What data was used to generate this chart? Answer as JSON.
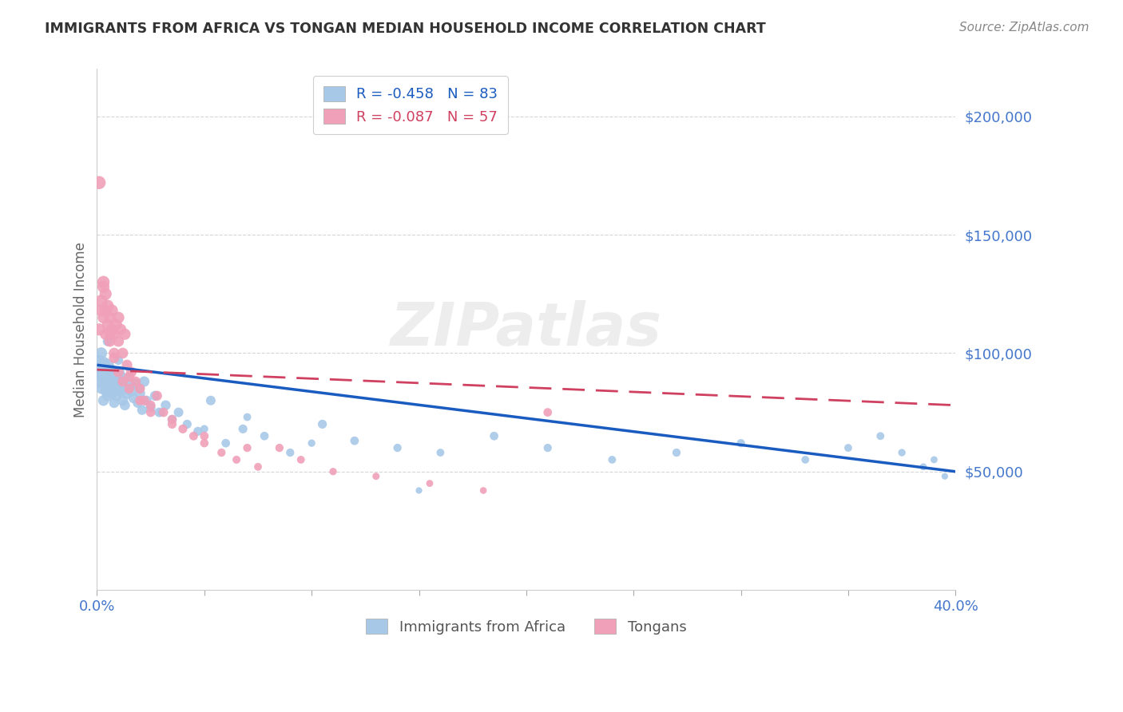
{
  "title": "IMMIGRANTS FROM AFRICA VS TONGAN MEDIAN HOUSEHOLD INCOME CORRELATION CHART",
  "source": "Source: ZipAtlas.com",
  "ylabel": "Median Household Income",
  "xlim": [
    0.0,
    0.4
  ],
  "ylim": [
    0,
    220000
  ],
  "watermark": "ZIPatlas",
  "legend_r1": "R = -0.458",
  "legend_n1": "N = 83",
  "legend_r2": "R = -0.087",
  "legend_n2": "N = 57",
  "africa_color": "#a8c8e8",
  "tongan_color": "#f0a0b8",
  "africa_line_color": "#1a5bbf",
  "tongan_line_color": "#d04060",
  "africa_label": "Immigrants from Africa",
  "tongan_label": "Tongans",
  "axis_color": "#4477cc",
  "grid_color": "#cccccc",
  "background_color": "#ffffff",
  "africa_x": [
    0.001,
    0.001,
    0.001,
    0.002,
    0.002,
    0.002,
    0.002,
    0.003,
    0.003,
    0.003,
    0.003,
    0.004,
    0.004,
    0.004,
    0.005,
    0.005,
    0.005,
    0.006,
    0.006,
    0.006,
    0.007,
    0.007,
    0.008,
    0.008,
    0.008,
    0.009,
    0.009,
    0.01,
    0.01,
    0.011,
    0.011,
    0.012,
    0.012,
    0.013,
    0.013,
    0.014,
    0.015,
    0.016,
    0.017,
    0.018,
    0.019,
    0.02,
    0.021,
    0.022,
    0.023,
    0.025,
    0.027,
    0.029,
    0.032,
    0.035,
    0.038,
    0.042,
    0.047,
    0.053,
    0.06,
    0.068,
    0.078,
    0.09,
    0.105,
    0.12,
    0.14,
    0.16,
    0.185,
    0.21,
    0.24,
    0.27,
    0.3,
    0.33,
    0.35,
    0.365,
    0.375,
    0.385,
    0.39,
    0.395,
    0.005,
    0.01,
    0.015,
    0.02,
    0.03,
    0.05,
    0.07,
    0.1,
    0.15
  ],
  "africa_y": [
    93000,
    88000,
    97000,
    95000,
    100000,
    85000,
    91000,
    87000,
    93000,
    80000,
    96000,
    88000,
    84000,
    91000,
    95000,
    82000,
    89000,
    90000,
    86000,
    93000,
    88000,
    83000,
    91000,
    85000,
    79000,
    87000,
    82000,
    92000,
    86000,
    90000,
    84000,
    88000,
    80000,
    85000,
    78000,
    83000,
    86000,
    84000,
    81000,
    87000,
    79000,
    83000,
    76000,
    88000,
    80000,
    77000,
    82000,
    75000,
    78000,
    72000,
    75000,
    70000,
    67000,
    80000,
    62000,
    68000,
    65000,
    58000,
    70000,
    63000,
    60000,
    58000,
    65000,
    60000,
    55000,
    58000,
    62000,
    55000,
    60000,
    65000,
    58000,
    52000,
    55000,
    48000,
    105000,
    97000,
    90000,
    85000,
    75000,
    68000,
    73000,
    62000,
    42000
  ],
  "africa_sizes": [
    150,
    120,
    100,
    130,
    110,
    90,
    120,
    100,
    115,
    95,
    120,
    105,
    90,
    110,
    125,
    100,
    115,
    110,
    95,
    120,
    105,
    90,
    115,
    100,
    85,
    105,
    90,
    115,
    100,
    110,
    95,
    105,
    90,
    100,
    85,
    100,
    95,
    90,
    85,
    95,
    80,
    90,
    80,
    90,
    80,
    75,
    80,
    75,
    80,
    70,
    75,
    65,
    65,
    75,
    60,
    65,
    60,
    55,
    65,
    60,
    55,
    50,
    60,
    55,
    50,
    55,
    55,
    50,
    50,
    50,
    45,
    40,
    40,
    35,
    80,
    70,
    65,
    60,
    55,
    50,
    50,
    45,
    35
  ],
  "tongan_x": [
    0.001,
    0.001,
    0.002,
    0.002,
    0.003,
    0.003,
    0.004,
    0.004,
    0.005,
    0.005,
    0.006,
    0.006,
    0.007,
    0.007,
    0.008,
    0.008,
    0.009,
    0.01,
    0.01,
    0.011,
    0.012,
    0.013,
    0.014,
    0.015,
    0.016,
    0.018,
    0.02,
    0.022,
    0.025,
    0.028,
    0.031,
    0.035,
    0.04,
    0.045,
    0.05,
    0.058,
    0.065,
    0.075,
    0.085,
    0.095,
    0.11,
    0.13,
    0.155,
    0.18,
    0.21,
    0.003,
    0.004,
    0.006,
    0.008,
    0.01,
    0.012,
    0.015,
    0.02,
    0.025,
    0.035,
    0.05,
    0.07
  ],
  "tongan_y": [
    172000,
    110000,
    122000,
    118000,
    130000,
    115000,
    125000,
    108000,
    120000,
    112000,
    115000,
    105000,
    118000,
    110000,
    108000,
    100000,
    112000,
    115000,
    105000,
    110000,
    100000,
    108000,
    95000,
    90000,
    92000,
    88000,
    85000,
    80000,
    78000,
    82000,
    75000,
    72000,
    68000,
    65000,
    62000,
    58000,
    55000,
    52000,
    60000,
    55000,
    50000,
    48000,
    45000,
    42000,
    75000,
    128000,
    118000,
    108000,
    98000,
    92000,
    88000,
    85000,
    80000,
    75000,
    70000,
    65000,
    60000
  ],
  "tongan_sizes": [
    140,
    120,
    130,
    115,
    125,
    110,
    120,
    105,
    118,
    110,
    112,
    100,
    115,
    108,
    105,
    95,
    110,
    112,
    100,
    108,
    95,
    105,
    90,
    88,
    90,
    85,
    82,
    78,
    75,
    80,
    70,
    68,
    65,
    62,
    58,
    55,
    52,
    50,
    55,
    50,
    45,
    42,
    40,
    38,
    60,
    120,
    110,
    100,
    92,
    88,
    85,
    80,
    75,
    70,
    65,
    60,
    55
  ]
}
